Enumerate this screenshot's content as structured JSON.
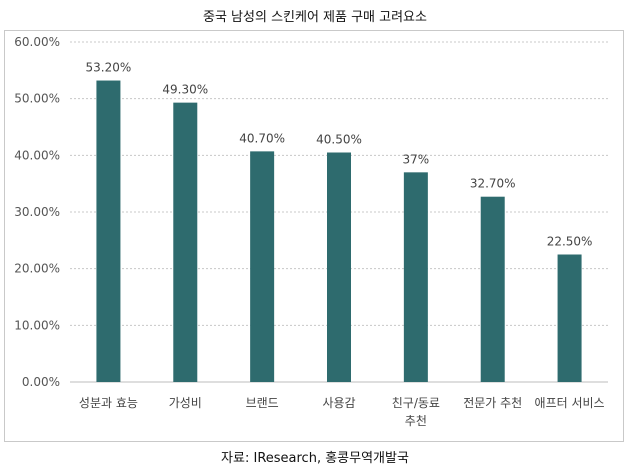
{
  "chart_data": {
    "type": "bar",
    "title": "중국 남성의 스킨케어 제품 구매 고려요소",
    "source": "자료: IResearch, 홍콩무역개발국",
    "categories": [
      "성분과 효능",
      "가성비",
      "브랜드",
      "사용감",
      "친구/동료\n추천",
      "전문가 추천",
      "애프터 서비스"
    ],
    "values": [
      53.2,
      49.3,
      40.7,
      40.5,
      37,
      32.7,
      22.5
    ],
    "data_labels": [
      "53.20%",
      "49.30%",
      "40.70%",
      "40.50%",
      "37%",
      "32.70%",
      "22.50%"
    ],
    "ylim": [
      0,
      60
    ],
    "yticks": [
      "0.00%",
      "10.00%",
      "20.00%",
      "30.00%",
      "40.00%",
      "50.00%",
      "60.00%"
    ],
    "grid": true,
    "bar_color": "#2e6b6e"
  }
}
